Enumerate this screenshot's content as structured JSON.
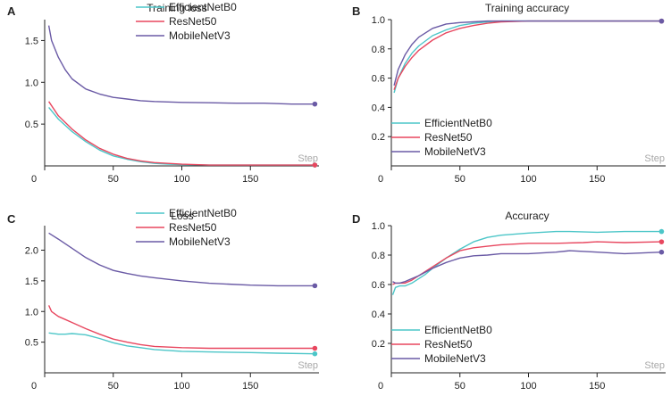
{
  "colors": {
    "EfficientNetB0": "#4cc6c8",
    "ResNet50": "#e8475f",
    "MobileNetV3": "#6a5aa5",
    "axis": "#222222",
    "step_label": "#a8a8a8"
  },
  "chart_data": [
    {
      "panel": "A",
      "type": "line",
      "title": "Training loss",
      "xlabel": "Step",
      "ylabel": "",
      "xlim": [
        0,
        200
      ],
      "ylim": [
        0,
        1.75
      ],
      "xticks": [
        0,
        50,
        100,
        150
      ],
      "yticks": [
        0.5,
        1.0,
        1.5
      ],
      "ytick_labels": [
        "0.5",
        "1.0",
        "1.5"
      ],
      "legend": "top-right",
      "series": [
        {
          "name": "EfficientNetB0",
          "x": [
            3,
            10,
            20,
            30,
            40,
            50,
            60,
            70,
            80,
            90,
            100,
            120,
            140,
            160,
            180,
            197
          ],
          "y": [
            0.7,
            0.56,
            0.41,
            0.29,
            0.19,
            0.12,
            0.08,
            0.05,
            0.03,
            0.02,
            0.015,
            0.01,
            0.01,
            0.01,
            0.01,
            0.01
          ]
        },
        {
          "name": "ResNet50",
          "x": [
            3,
            10,
            20,
            30,
            40,
            50,
            60,
            70,
            80,
            90,
            100,
            120,
            140,
            160,
            180,
            197
          ],
          "y": [
            0.77,
            0.6,
            0.44,
            0.31,
            0.21,
            0.14,
            0.09,
            0.06,
            0.04,
            0.03,
            0.02,
            0.01,
            0.01,
            0.01,
            0.01,
            0.01
          ]
        },
        {
          "name": "MobileNetV3",
          "x": [
            3,
            5,
            10,
            15,
            20,
            30,
            40,
            50,
            60,
            70,
            80,
            100,
            120,
            140,
            160,
            180,
            197
          ],
          "y": [
            1.68,
            1.5,
            1.3,
            1.15,
            1.04,
            0.92,
            0.86,
            0.82,
            0.8,
            0.78,
            0.77,
            0.76,
            0.755,
            0.75,
            0.75,
            0.74,
            0.74
          ]
        }
      ]
    },
    {
      "panel": "B",
      "type": "line",
      "title": "Training accuracy",
      "xlabel": "Step",
      "ylabel": "",
      "xlim": [
        0,
        200
      ],
      "ylim": [
        0.0,
        1.0
      ],
      "xticks": [
        0,
        50,
        100,
        150
      ],
      "yticks": [
        0.2,
        0.4,
        0.6,
        0.8,
        1.0
      ],
      "ytick_labels": [
        "0.2",
        "0.4",
        "0.6",
        "0.8",
        "1.0"
      ],
      "legend": "bottom-left",
      "series": [
        {
          "name": "EfficientNetB0",
          "x": [
            2,
            5,
            10,
            15,
            20,
            30,
            40,
            50,
            60,
            70,
            80,
            100,
            120,
            150,
            197
          ],
          "y": [
            0.5,
            0.6,
            0.7,
            0.77,
            0.82,
            0.89,
            0.93,
            0.96,
            0.975,
            0.985,
            0.99,
            0.99,
            0.99,
            0.99,
            0.99
          ]
        },
        {
          "name": "ResNet50",
          "x": [
            2,
            5,
            10,
            15,
            20,
            30,
            40,
            50,
            60,
            70,
            80,
            100,
            120,
            150,
            197
          ],
          "y": [
            0.52,
            0.6,
            0.68,
            0.74,
            0.79,
            0.86,
            0.91,
            0.94,
            0.96,
            0.975,
            0.985,
            0.99,
            0.99,
            0.99,
            0.99
          ]
        },
        {
          "name": "MobileNetV3",
          "x": [
            2,
            5,
            10,
            15,
            20,
            30,
            40,
            50,
            60,
            70,
            80,
            100,
            120,
            150,
            197
          ],
          "y": [
            0.55,
            0.66,
            0.76,
            0.83,
            0.88,
            0.94,
            0.97,
            0.98,
            0.985,
            0.99,
            0.99,
            0.99,
            0.99,
            0.99,
            0.99
          ]
        }
      ]
    },
    {
      "panel": "C",
      "type": "line",
      "title": "Loss",
      "xlabel": "Step",
      "ylabel": "",
      "xlim": [
        0,
        200
      ],
      "ylim": [
        0.0,
        2.4
      ],
      "xticks": [
        0,
        50,
        100,
        150
      ],
      "yticks": [
        0.5,
        1.0,
        1.5,
        2.0
      ],
      "ytick_labels": [
        "0.5",
        "1.0",
        "1.5",
        "2.0"
      ],
      "legend": "top-right",
      "series": [
        {
          "name": "EfficientNetB0",
          "x": [
            3,
            10,
            15,
            20,
            25,
            30,
            35,
            40,
            50,
            60,
            70,
            80,
            100,
            120,
            150,
            170,
            197
          ],
          "y": [
            0.65,
            0.63,
            0.63,
            0.64,
            0.63,
            0.62,
            0.59,
            0.56,
            0.49,
            0.44,
            0.41,
            0.38,
            0.35,
            0.34,
            0.33,
            0.32,
            0.31
          ]
        },
        {
          "name": "ResNet50",
          "x": [
            3,
            5,
            10,
            15,
            20,
            30,
            40,
            50,
            60,
            70,
            80,
            100,
            120,
            150,
            197
          ],
          "y": [
            1.1,
            1.0,
            0.92,
            0.87,
            0.82,
            0.72,
            0.63,
            0.55,
            0.5,
            0.46,
            0.43,
            0.41,
            0.4,
            0.4,
            0.4
          ]
        },
        {
          "name": "MobileNetV3",
          "x": [
            3,
            5,
            10,
            20,
            30,
            40,
            50,
            60,
            70,
            80,
            100,
            120,
            150,
            170,
            197
          ],
          "y": [
            2.28,
            2.25,
            2.18,
            2.03,
            1.88,
            1.76,
            1.67,
            1.62,
            1.58,
            1.55,
            1.5,
            1.46,
            1.43,
            1.42,
            1.42
          ]
        }
      ]
    },
    {
      "panel": "D",
      "type": "line",
      "title": "Accuracy",
      "xlabel": "Step",
      "ylabel": "",
      "xlim": [
        0,
        200
      ],
      "ylim": [
        0.0,
        1.0
      ],
      "xticks": [
        0,
        50,
        100,
        150
      ],
      "yticks": [
        0.2,
        0.4,
        0.6,
        0.8,
        1.0
      ],
      "ytick_labels": [
        "0.2",
        "0.4",
        "0.6",
        "0.8",
        "1.0"
      ],
      "legend": "bottom-left",
      "series": [
        {
          "name": "EfficientNetB0",
          "x": [
            1,
            3,
            6,
            10,
            15,
            20,
            25,
            30,
            40,
            50,
            60,
            70,
            80,
            100,
            120,
            130,
            150,
            170,
            197
          ],
          "y": [
            0.53,
            0.58,
            0.59,
            0.59,
            0.61,
            0.64,
            0.67,
            0.71,
            0.78,
            0.84,
            0.89,
            0.92,
            0.935,
            0.95,
            0.96,
            0.96,
            0.955,
            0.96,
            0.96
          ]
        },
        {
          "name": "ResNet50",
          "x": [
            1,
            3,
            6,
            10,
            15,
            20,
            30,
            40,
            50,
            60,
            70,
            80,
            100,
            120,
            140,
            150,
            170,
            197
          ],
          "y": [
            0.6,
            0.61,
            0.61,
            0.61,
            0.63,
            0.66,
            0.72,
            0.78,
            0.83,
            0.85,
            0.86,
            0.87,
            0.88,
            0.88,
            0.885,
            0.89,
            0.885,
            0.89
          ]
        },
        {
          "name": "MobileNetV3",
          "x": [
            1,
            3,
            6,
            10,
            15,
            20,
            30,
            40,
            50,
            60,
            70,
            80,
            100,
            120,
            130,
            150,
            170,
            197
          ],
          "y": [
            0.62,
            0.61,
            0.61,
            0.62,
            0.64,
            0.66,
            0.71,
            0.75,
            0.78,
            0.795,
            0.8,
            0.81,
            0.81,
            0.82,
            0.83,
            0.82,
            0.81,
            0.82
          ]
        }
      ]
    }
  ]
}
